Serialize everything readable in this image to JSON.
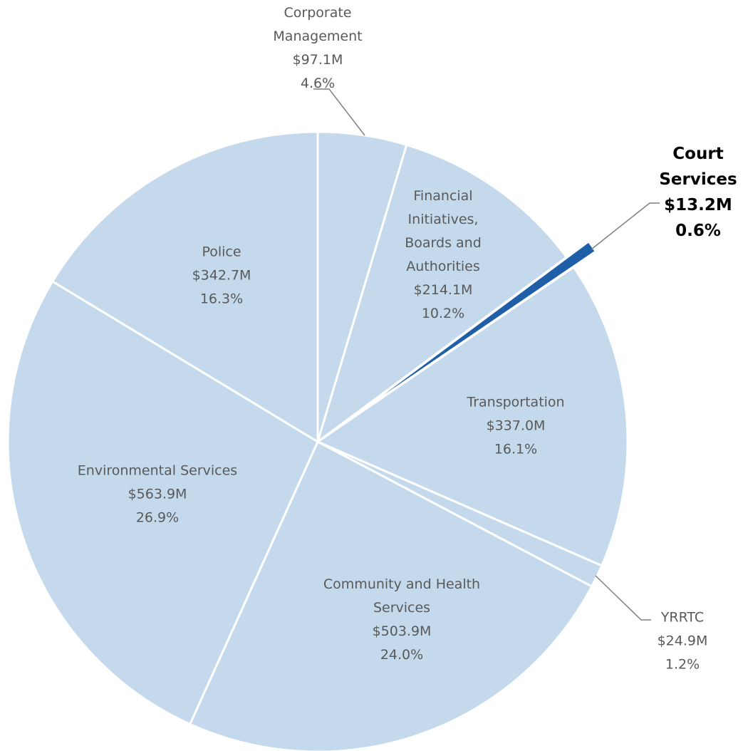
{
  "chart_data": {
    "type": "pie",
    "categories": [
      "Corporate Management",
      "Financial Initiatives, Boards and Authorities",
      "Court Services",
      "Transportation",
      "YRRTC",
      "Community and Health Services",
      "Environmental Services",
      "Police"
    ],
    "values": [
      97.1,
      214.1,
      13.2,
      337.0,
      24.9,
      503.9,
      563.9,
      342.7
    ],
    "value_labels": [
      "$97.1M",
      "$214.1M",
      "$13.2M",
      "$337.0M",
      "$24.9M",
      "$503.9M",
      "$563.9M",
      "$342.7M"
    ],
    "percentages": [
      4.6,
      10.2,
      0.6,
      16.1,
      1.2,
      24.0,
      26.9,
      16.3
    ],
    "percentage_labels": [
      "4.6%",
      "10.2%",
      "0.6%",
      "16.1%",
      "1.2%",
      "24.0%",
      "26.9%",
      "16.3%"
    ],
    "colors": [
      "#c5d9ed",
      "#c5d9ed",
      "#1f5fa8",
      "#c5d9ed",
      "#c5d9ed",
      "#c5d9ed",
      "#c5d9ed",
      "#c5d9ed"
    ]
  }
}
